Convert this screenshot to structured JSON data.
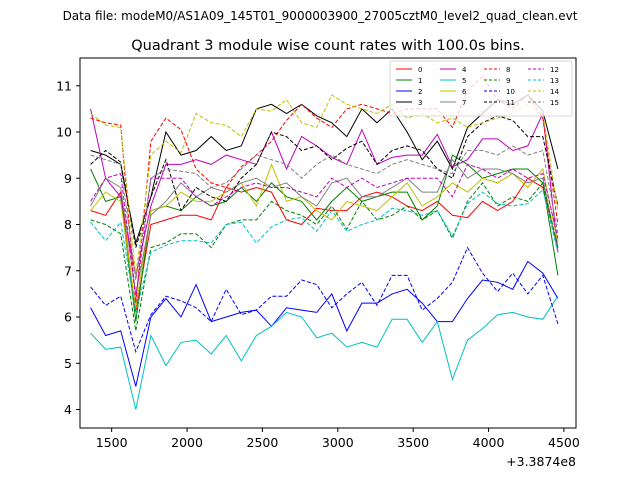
{
  "figure": {
    "suptitle": "Data file: modeM0/AS1A09_145T01_9000003900_27005cztM0_level2_quad_clean.evt"
  },
  "chart_data": {
    "type": "line",
    "title": "Quadrant 3 module wise count rates with 100.0s bins.",
    "xlabel": "",
    "ylabel": "",
    "x_offset_label": "+3.3874e8",
    "xlim": [
      1290,
      4580
    ],
    "ylim": [
      3.6,
      11.6
    ],
    "xticks": [
      1500,
      2000,
      2500,
      3000,
      3500,
      4000,
      4500
    ],
    "yticks": [
      4,
      5,
      6,
      7,
      8,
      9,
      10,
      11
    ],
    "grid": false,
    "legend_position": "top-right",
    "legend_columns": 4,
    "x": [
      1360,
      1460,
      1560,
      1660,
      1760,
      1860,
      1960,
      2060,
      2160,
      2260,
      2360,
      2460,
      2560,
      2660,
      2760,
      2860,
      2960,
      3060,
      3160,
      3260,
      3360,
      3460,
      3560,
      3660,
      3760,
      3860,
      3960,
      4060,
      4160,
      4260,
      4360,
      4460
    ],
    "series": [
      {
        "name": "0",
        "color": "#ff0000",
        "dash": false,
        "values": [
          8.3,
          8.2,
          8.7,
          6.1,
          8.0,
          8.1,
          8.2,
          8.2,
          8.1,
          8.8,
          8.7,
          8.8,
          8.7,
          8.1,
          8.0,
          8.35,
          8.3,
          8.3,
          8.6,
          8.7,
          8.6,
          8.4,
          8.3,
          8.5,
          8.2,
          8.15,
          8.5,
          8.3,
          8.5,
          9.0,
          8.8,
          7.5
        ]
      },
      {
        "name": "1",
        "color": "#008000",
        "dash": false,
        "values": [
          9.2,
          8.5,
          8.6,
          5.9,
          8.3,
          8.4,
          8.3,
          8.6,
          8.4,
          8.5,
          8.8,
          8.5,
          8.9,
          8.6,
          8.5,
          8.1,
          8.5,
          8.8,
          8.5,
          8.6,
          8.7,
          8.7,
          8.1,
          8.4,
          9.5,
          9.3,
          9.0,
          9.1,
          9.2,
          9.2,
          8.9,
          6.9
        ]
      },
      {
        "name": "2",
        "color": "#0000ff",
        "dash": false,
        "values": [
          6.2,
          5.6,
          5.7,
          4.5,
          6.0,
          6.4,
          6.0,
          6.7,
          5.9,
          6.0,
          6.1,
          6.15,
          5.8,
          6.2,
          6.15,
          6.1,
          6.5,
          5.7,
          6.3,
          6.3,
          6.5,
          6.6,
          6.3,
          5.9,
          5.9,
          6.4,
          6.8,
          6.75,
          6.6,
          7.2,
          6.95,
          6.4
        ]
      },
      {
        "name": "3",
        "color": "#000000",
        "dash": false,
        "values": [
          9.6,
          9.5,
          9.3,
          7.6,
          8.6,
          10.0,
          9.5,
          9.6,
          9.9,
          9.6,
          9.7,
          10.5,
          10.6,
          10.4,
          10.6,
          10.35,
          10.2,
          9.9,
          10.5,
          10.2,
          10.5,
          10.0,
          9.4,
          9.8,
          9.2,
          10.1,
          10.4,
          10.7,
          10.6,
          10.8,
          10.45,
          9.2
        ]
      },
      {
        "name": "4",
        "color": "#c000c0",
        "dash": false,
        "values": [
          10.5,
          9.0,
          8.6,
          6.9,
          8.4,
          9.3,
          9.3,
          9.4,
          9.3,
          9.5,
          9.4,
          9.3,
          10.0,
          9.2,
          9.9,
          9.7,
          9.45,
          9.3,
          10.05,
          9.3,
          9.45,
          9.5,
          9.5,
          9.95,
          9.25,
          9.4,
          9.85,
          9.85,
          9.6,
          9.7,
          10.4,
          7.4
        ]
      },
      {
        "name": "5",
        "color": "#00c0c0",
        "dash": false,
        "values": [
          5.65,
          5.3,
          5.35,
          4.0,
          5.6,
          4.95,
          5.45,
          5.5,
          5.2,
          5.6,
          5.05,
          5.6,
          5.8,
          6.1,
          6.0,
          5.55,
          5.65,
          5.35,
          5.45,
          5.35,
          5.95,
          5.95,
          5.45,
          5.9,
          4.65,
          5.5,
          5.75,
          6.05,
          6.1,
          6.0,
          5.95,
          6.45
        ]
      },
      {
        "name": "6",
        "color": "#c0c000",
        "dash": false,
        "values": [
          8.3,
          8.7,
          8.5,
          6.2,
          8.3,
          8.4,
          8.7,
          8.5,
          8.5,
          8.7,
          8.9,
          8.4,
          9.3,
          8.5,
          8.6,
          8.3,
          8.1,
          8.5,
          8.4,
          8.3,
          8.6,
          8.9,
          8.4,
          8.6,
          8.9,
          8.7,
          9.0,
          8.9,
          9.1,
          8.8,
          9.2,
          7.6
        ]
      },
      {
        "name": "7",
        "color": "#808080",
        "dash": false,
        "values": [
          8.4,
          9.0,
          8.8,
          6.5,
          8.2,
          8.5,
          8.9,
          8.6,
          8.8,
          8.7,
          8.9,
          9.0,
          8.8,
          8.9,
          8.6,
          8.4,
          8.9,
          9.0,
          8.6,
          8.6,
          8.8,
          9.0,
          8.7,
          8.7,
          9.4,
          9.0,
          9.2,
          9.2,
          9.1,
          8.9,
          9.0,
          7.4
        ]
      },
      {
        "name": "8",
        "color": "#ff0000",
        "dash": true,
        "values": [
          10.3,
          10.2,
          10.15,
          6.3,
          9.8,
          10.3,
          10.05,
          9.2,
          8.9,
          8.8,
          9.25,
          9.5,
          9.8,
          10.25,
          10.6,
          10.3,
          10.1,
          10.5,
          10.6,
          10.5,
          10.4,
          10.5,
          10.5,
          10.5,
          10.1,
          10.9,
          11.2,
          10.7,
          10.5,
          10.8,
          10.3,
          8.0
        ]
      },
      {
        "name": "9",
        "color": "#008000",
        "dash": true,
        "values": [
          8.1,
          8.0,
          7.8,
          5.7,
          7.5,
          7.6,
          7.8,
          7.8,
          7.5,
          8.0,
          8.1,
          8.1,
          8.5,
          8.3,
          8.2,
          8.0,
          8.4,
          7.9,
          8.5,
          8.1,
          8.2,
          8.4,
          8.1,
          8.3,
          7.7,
          8.5,
          8.9,
          8.4,
          8.6,
          8.5,
          8.9,
          7.5
        ]
      },
      {
        "name": "10",
        "color": "#0000ff",
        "dash": true,
        "values": [
          6.65,
          6.25,
          6.45,
          5.25,
          6.05,
          6.45,
          6.35,
          6.2,
          5.9,
          6.6,
          6.05,
          6.15,
          6.45,
          6.45,
          6.8,
          6.7,
          6.2,
          6.5,
          6.75,
          6.25,
          6.9,
          6.9,
          6.15,
          6.4,
          6.75,
          7.5,
          6.95,
          6.55,
          6.95,
          6.5,
          6.9,
          5.85
        ]
      },
      {
        "name": "11",
        "color": "#000000",
        "dash": true,
        "values": [
          9.3,
          9.6,
          9.35,
          7.5,
          8.6,
          9.4,
          8.3,
          8.8,
          8.6,
          8.5,
          9.0,
          9.3,
          10.0,
          9.9,
          9.6,
          9.7,
          9.4,
          9.65,
          9.8,
          9.3,
          9.6,
          9.7,
          9.6,
          9.2,
          9.0,
          9.9,
          10.2,
          10.35,
          10.25,
          9.9,
          9.9,
          8.4
        ]
      },
      {
        "name": "12",
        "color": "#c000c0",
        "dash": true,
        "values": [
          8.5,
          9.0,
          9.1,
          6.4,
          9.0,
          9.0,
          9.0,
          8.6,
          8.4,
          8.6,
          8.8,
          8.9,
          8.8,
          8.8,
          8.7,
          8.6,
          9.0,
          8.8,
          9.0,
          8.8,
          8.9,
          9.0,
          9.0,
          9.0,
          8.6,
          9.3,
          9.2,
          9.0,
          9.2,
          9.0,
          9.1,
          7.7
        ]
      },
      {
        "name": "13",
        "color": "#00c0c0",
        "dash": true,
        "values": [
          8.05,
          7.65,
          8.05,
          6.1,
          7.4,
          7.55,
          7.65,
          7.65,
          7.6,
          8.0,
          8.05,
          7.6,
          7.95,
          8.1,
          8.15,
          7.85,
          8.3,
          7.85,
          8.0,
          8.1,
          8.35,
          8.3,
          8.2,
          8.3,
          7.75,
          8.45,
          8.7,
          8.45,
          8.4,
          8.45,
          8.75,
          7.4
        ]
      },
      {
        "name": "14",
        "color": "#c0c000",
        "dash": true,
        "values": [
          10.4,
          10.15,
          10.1,
          6.9,
          9.5,
          9.8,
          9.55,
          10.4,
          10.2,
          10.15,
          9.9,
          10.5,
          10.45,
          10.7,
          10.2,
          10.1,
          10.8,
          10.6,
          10.5,
          10.4,
          10.6,
          10.3,
          10.4,
          10.2,
          10.3,
          10.1,
          10.2,
          10.3,
          10.4,
          10.6,
          10.4,
          8.3
        ]
      },
      {
        "name": "15",
        "color": "#808080",
        "dash": true,
        "values": [
          9.5,
          9.4,
          9.3,
          6.8,
          9.0,
          9.2,
          9.15,
          9.1,
          8.8,
          8.9,
          9.2,
          9.5,
          9.4,
          9.3,
          9.0,
          9.3,
          9.5,
          9.3,
          9.2,
          9.1,
          9.3,
          9.4,
          9.3,
          9.2,
          9.1,
          9.6,
          9.6,
          9.5,
          9.7,
          9.5,
          9.6,
          7.8
        ]
      }
    ]
  }
}
